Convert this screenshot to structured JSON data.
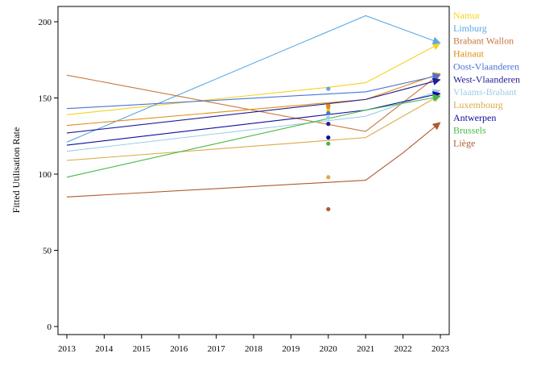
{
  "chart_data": {
    "type": "line",
    "title": "",
    "xlabel": "",
    "ylabel": "Fitted Utilisation Rate",
    "xlim": [
      2013,
      2023
    ],
    "ylim": [
      0,
      210
    ],
    "x_ticks": [
      2013,
      2014,
      2015,
      2016,
      2017,
      2018,
      2019,
      2020,
      2021,
      2022,
      2023
    ],
    "y_ticks": [
      0,
      50,
      100,
      150,
      200
    ],
    "grid": false,
    "legend_placement": "right",
    "series": [
      {
        "name": "Namur",
        "color": "#f5d31c",
        "line": [
          [
            2013,
            139
          ],
          [
            2020,
            157
          ],
          [
            2021,
            160
          ],
          [
            2023,
            186
          ]
        ],
        "point_2020": 142
      },
      {
        "name": "Limburg",
        "color": "#5aa9e6",
        "line": [
          [
            2013,
            121
          ],
          [
            2021,
            204
          ],
          [
            2023,
            186
          ]
        ],
        "point_2020": 156
      },
      {
        "name": "Brabant Wallon",
        "color": "#c8763c",
        "line": [
          [
            2013,
            165
          ],
          [
            2021,
            128
          ],
          [
            2023,
            166
          ]
        ],
        "point_2020": 145
      },
      {
        "name": "Hainaut",
        "color": "#e48c14",
        "line": [
          [
            2013,
            132
          ],
          [
            2021,
            149
          ],
          [
            2023,
            166
          ]
        ],
        "point_2020": 144
      },
      {
        "name": "Oost-Vlaanderen",
        "color": "#4a74d4",
        "line": [
          [
            2013,
            143
          ],
          [
            2021,
            154
          ],
          [
            2023,
            165
          ]
        ],
        "point_2020": 140
      },
      {
        "name": "West-Vlaanderen",
        "color": "#1e1e96",
        "line": [
          [
            2013,
            127
          ],
          [
            2021,
            149
          ],
          [
            2023,
            162
          ]
        ],
        "point_2020": 133
      },
      {
        "name": "Vlaams-Brabant",
        "color": "#9ccde8",
        "line": [
          [
            2013,
            115
          ],
          [
            2021,
            138
          ],
          [
            2023,
            155
          ]
        ],
        "point_2020": 137
      },
      {
        "name": "Luxembourg",
        "color": "#dcaa48",
        "line": [
          [
            2013,
            109
          ],
          [
            2021,
            124
          ],
          [
            2023,
            152
          ]
        ],
        "point_2020": 98
      },
      {
        "name": "Antwerpen",
        "color": "#0e0ea0",
        "line": [
          [
            2013,
            119
          ],
          [
            2021,
            142
          ],
          [
            2023,
            153
          ]
        ],
        "point_2020": 124
      },
      {
        "name": "Brussels",
        "color": "#46b846",
        "line": [
          [
            2013,
            98
          ],
          [
            2021,
            142
          ],
          [
            2023,
            151
          ]
        ],
        "point_2020": 120
      },
      {
        "name": "Liège",
        "color": "#b05a30",
        "line": [
          [
            2013,
            85
          ],
          [
            2021,
            96
          ],
          [
            2022,
            114
          ],
          [
            2023,
            134
          ]
        ],
        "point_2020": 77
      }
    ]
  }
}
